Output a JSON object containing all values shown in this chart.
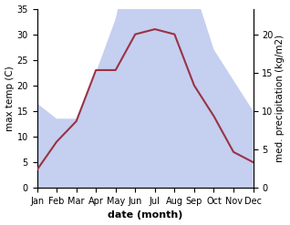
{
  "months": [
    "Jan",
    "Feb",
    "Mar",
    "Apr",
    "May",
    "Jun",
    "Jul",
    "Aug",
    "Sep",
    "Oct",
    "Nov",
    "Dec"
  ],
  "temperature": [
    3.5,
    9,
    13,
    23,
    23,
    30,
    31,
    30,
    20,
    14,
    7,
    5
  ],
  "precipitation": [
    11,
    9,
    9,
    15,
    22,
    33,
    33,
    33,
    26,
    18,
    14,
    10
  ],
  "temp_color": "#993344",
  "precip_fill_color": "#c5cff0",
  "bg_color": "#ffffff",
  "xlabel": "date (month)",
  "ylabel_left": "max temp (C)",
  "ylabel_right": "med. precipitation (kg/m2)",
  "ylim_left": [
    0,
    35
  ],
  "ylim_right": [
    0,
    23.33
  ],
  "yticks_left": [
    0,
    5,
    10,
    15,
    20,
    25,
    30,
    35
  ],
  "yticks_right": [
    0,
    5,
    10,
    15,
    20
  ],
  "xlabel_fontsize": 8,
  "ylabel_fontsize": 7.5,
  "tick_fontsize": 7
}
